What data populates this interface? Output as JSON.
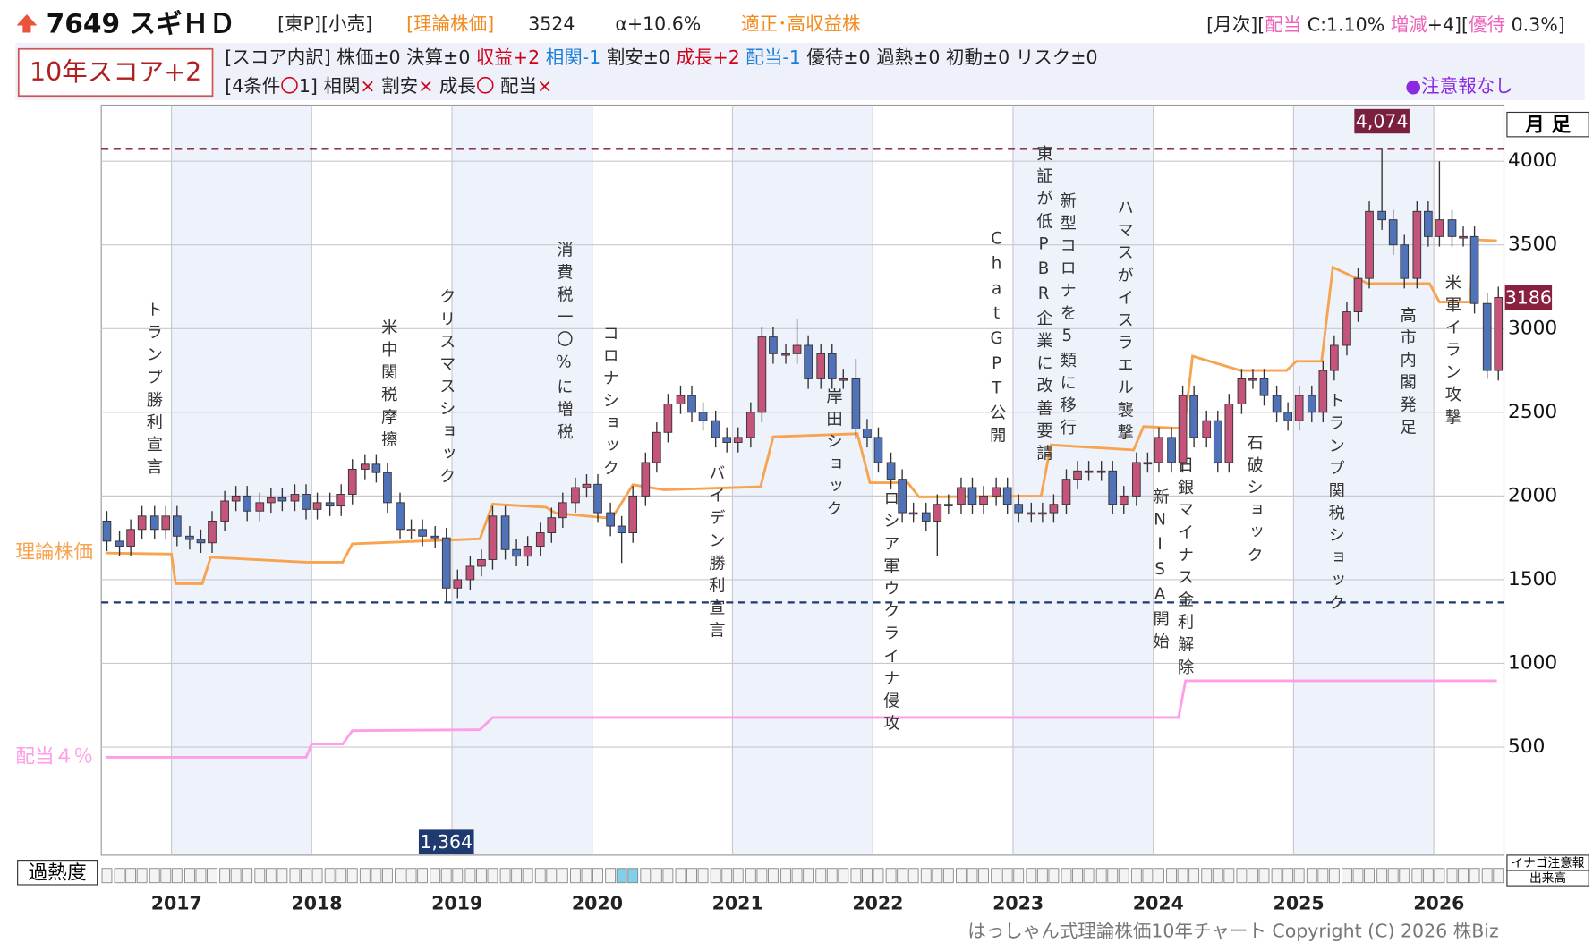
{
  "header": {
    "code_name": "7649 スギＨＤ",
    "market": "[東P][小売]",
    "theory_label": "[理論株価]",
    "theory_value": 3524,
    "alpha": "α+10.6%",
    "rating": "適正･高収益株",
    "monthly": [
      "[月次][",
      "配当",
      " C:1.10% ",
      "増減",
      "+4][",
      "優待",
      " 0.3%]"
    ],
    "score": "10年スコア+2",
    "breakdown": [
      {
        "text": "[スコア内訳] 株価±0 決算±0 ",
        "color": "#222222"
      },
      {
        "text": "収益+2 ",
        "color": "#d0021b"
      },
      {
        "text": "相関-1 ",
        "color": "#1e7fd8"
      },
      {
        "text": "割安±0 ",
        "color": "#222222"
      },
      {
        "text": "成長+2 ",
        "color": "#d0021b"
      },
      {
        "text": "配当-1 ",
        "color": "#1e7fd8"
      },
      {
        "text": "優待±0 過熱±0 初動±0 リスク±0",
        "color": "#222222"
      }
    ],
    "conditions": [
      {
        "text": "[4条件",
        "color": "#222222"
      },
      {
        "text": "〇",
        "color": "#d0021b"
      },
      {
        "text": "1] 相関",
        "color": "#222222"
      },
      {
        "text": "× ",
        "color": "#d0021b"
      },
      {
        "text": "割安",
        "color": "#222222"
      },
      {
        "text": "× ",
        "color": "#d0021b"
      },
      {
        "text": "成長",
        "color": "#222222"
      },
      {
        "text": "〇 ",
        "color": "#d0021b"
      },
      {
        "text": "配当",
        "color": "#222222"
      },
      {
        "text": "×",
        "color": "#d0021b"
      }
    ],
    "alert": "●注意報なし"
  },
  "chart_data": {
    "type": "candlestick",
    "period_label": "月 足",
    "xlim": [
      2016.5,
      2026.5
    ],
    "xticks": [
      2017,
      2018,
      2019,
      2020,
      2021,
      2022,
      2023,
      2024,
      2025,
      2026
    ],
    "ylim": [
      -146,
      4335
    ],
    "yticks": [
      500,
      1000,
      1500,
      2000,
      2500,
      3000,
      3500,
      4000
    ],
    "grid": true,
    "up_color": "#c4547a",
    "down_color": "#4f72b8",
    "x": [
      2016.54,
      2016.63,
      2016.71,
      2016.79,
      2016.88,
      2016.96,
      2017.04,
      2017.13,
      2017.21,
      2017.29,
      2017.38,
      2017.46,
      2017.54,
      2017.63,
      2017.71,
      2017.79,
      2017.88,
      2017.96,
      2018.04,
      2018.13,
      2018.21,
      2018.29,
      2018.38,
      2018.46,
      2018.54,
      2018.63,
      2018.71,
      2018.79,
      2018.88,
      2018.96,
      2019.04,
      2019.13,
      2019.21,
      2019.29,
      2019.38,
      2019.46,
      2019.54,
      2019.63,
      2019.71,
      2019.79,
      2019.88,
      2019.96,
      2020.04,
      2020.13,
      2020.21,
      2020.29,
      2020.38,
      2020.46,
      2020.54,
      2020.63,
      2020.71,
      2020.79,
      2020.88,
      2020.96,
      2021.04,
      2021.13,
      2021.21,
      2021.29,
      2021.38,
      2021.46,
      2021.54,
      2021.63,
      2021.71,
      2021.79,
      2021.88,
      2021.96,
      2022.04,
      2022.13,
      2022.21,
      2022.29,
      2022.38,
      2022.46,
      2022.54,
      2022.63,
      2022.71,
      2022.79,
      2022.88,
      2022.96,
      2023.04,
      2023.13,
      2023.21,
      2023.29,
      2023.38,
      2023.46,
      2023.54,
      2023.63,
      2023.71,
      2023.79,
      2023.88,
      2023.96,
      2024.04,
      2024.13,
      2024.21,
      2024.29,
      2024.38,
      2024.46,
      2024.54,
      2024.63,
      2024.71,
      2024.79,
      2024.88,
      2024.96,
      2025.04,
      2025.13,
      2025.21,
      2025.29,
      2025.38,
      2025.46,
      2025.54,
      2025.63,
      2025.71,
      2025.79,
      2025.88,
      2025.96,
      2026.04,
      2026.13,
      2026.21,
      2026.29,
      2026.38,
      2026.46
    ],
    "open": [
      1850,
      1730,
      1700,
      1800,
      1880,
      1800,
      1880,
      1760,
      1740,
      1720,
      1850,
      1970,
      2000,
      1910,
      1960,
      1990,
      1970,
      2010,
      1920,
      1960,
      1940,
      2010,
      2160,
      2190,
      2140,
      1960,
      1800,
      1800,
      1760,
      1750,
      1450,
      1500,
      1580,
      1620,
      1880,
      1680,
      1640,
      1700,
      1780,
      1870,
      1960,
      2050,
      2070,
      1900,
      1820,
      1780,
      2000,
      2200,
      2380,
      2550,
      2600,
      2500,
      2450,
      2350,
      2320,
      2350,
      2500,
      2950,
      2850,
      2850,
      2900,
      2700,
      2850,
      2700,
      2700,
      2400,
      2350,
      2200,
      2100,
      1900,
      1900,
      1850,
      1950,
      1950,
      2050,
      1950,
      2000,
      2050,
      1950,
      1900,
      1900,
      1900,
      1950,
      2100,
      2150,
      2150,
      2150,
      1950,
      2000,
      2200,
      2200,
      2350,
      2200,
      2600,
      2350,
      2450,
      2200,
      2550,
      2700,
      2700,
      2600,
      2500,
      2450,
      2600,
      2500,
      2750,
      2900,
      3100,
      3300,
      3700,
      3650,
      3500,
      3300,
      3700,
      3550,
      3650,
      3550,
      3550,
      3150,
      2750
    ],
    "high": [
      1910,
      1790,
      1860,
      1940,
      1940,
      1940,
      1940,
      1820,
      1800,
      1910,
      2030,
      2060,
      2060,
      2020,
      2050,
      2050,
      2070,
      2070,
      2020,
      2020,
      2070,
      2220,
      2250,
      2250,
      2200,
      2020,
      1860,
      1860,
      1820,
      1810,
      1560,
      1640,
      1680,
      1940,
      1940,
      1740,
      1760,
      1840,
      1930,
      2020,
      2110,
      2130,
      2130,
      1960,
      1880,
      2060,
      2260,
      2440,
      2610,
      2660,
      2660,
      2560,
      2510,
      2410,
      2410,
      2560,
      3010,
      3010,
      2910,
      3060,
      2960,
      2910,
      2910,
      2760,
      2820,
      2460,
      2410,
      2260,
      2160,
      1960,
      1960,
      2010,
      2010,
      2110,
      2110,
      2060,
      2110,
      2110,
      2010,
      1960,
      1960,
      2010,
      2160,
      2210,
      2210,
      2210,
      2210,
      2060,
      2260,
      2260,
      2410,
      2410,
      2660,
      2660,
      2510,
      2510,
      2610,
      2760,
      2760,
      2760,
      2660,
      2560,
      2660,
      2660,
      2810,
      2960,
      3160,
      3360,
      3760,
      4074,
      3710,
      3560,
      3760,
      3760,
      4000,
      3710,
      3610,
      3610,
      3210,
      3250
    ],
    "low": [
      1670,
      1640,
      1640,
      1740,
      1740,
      1740,
      1700,
      1680,
      1660,
      1660,
      1790,
      1910,
      1850,
      1850,
      1900,
      1910,
      1910,
      1860,
      1860,
      1880,
      1880,
      1950,
      2100,
      2080,
      1900,
      1740,
      1740,
      1700,
      1690,
      1364,
      1390,
      1440,
      1520,
      1560,
      1620,
      1580,
      1580,
      1640,
      1720,
      1810,
      1900,
      1990,
      1840,
      1760,
      1600,
      1720,
      1940,
      2140,
      2320,
      2490,
      2440,
      2390,
      2290,
      2260,
      2260,
      2290,
      2440,
      2790,
      2790,
      2790,
      2640,
      2640,
      2640,
      2640,
      2340,
      2290,
      2140,
      2040,
      1840,
      1840,
      1790,
      1640,
      1890,
      1890,
      1890,
      1890,
      1940,
      1890,
      1840,
      1840,
      1840,
      1840,
      1890,
      2040,
      2090,
      2090,
      1890,
      1890,
      1940,
      2140,
      2140,
      2140,
      2140,
      2290,
      2290,
      2140,
      2140,
      2490,
      2640,
      2540,
      2440,
      2390,
      2390,
      2440,
      2440,
      2690,
      2840,
      3040,
      3240,
      3590,
      3440,
      3240,
      3240,
      3490,
      3490,
      3490,
      3490,
      3090,
      2700,
      2690
    ],
    "close": [
      1730,
      1700,
      1800,
      1880,
      1800,
      1880,
      1760,
      1740,
      1720,
      1850,
      1970,
      2000,
      1910,
      1960,
      1990,
      1970,
      2010,
      1920,
      1960,
      1940,
      2010,
      2160,
      2190,
      2140,
      1960,
      1800,
      1800,
      1760,
      1750,
      1450,
      1500,
      1580,
      1620,
      1880,
      1680,
      1640,
      1700,
      1780,
      1870,
      1960,
      2050,
      2070,
      1900,
      1820,
      1780,
      2000,
      2200,
      2380,
      2550,
      2600,
      2500,
      2450,
      2350,
      2320,
      2350,
      2500,
      2950,
      2850,
      2850,
      2900,
      2700,
      2850,
      2700,
      2700,
      2400,
      2350,
      2200,
      2100,
      1900,
      1900,
      1850,
      1950,
      1950,
      2050,
      1950,
      2000,
      2050,
      1950,
      1900,
      1900,
      1900,
      1950,
      2100,
      2150,
      2150,
      2150,
      1950,
      2000,
      2200,
      2200,
      2350,
      2200,
      2600,
      2350,
      2450,
      2200,
      2550,
      2700,
      2700,
      2600,
      2500,
      2450,
      2600,
      2500,
      2750,
      2900,
      3100,
      3300,
      3700,
      3650,
      3500,
      3300,
      3700,
      3550,
      3650,
      3550,
      3550,
      3150,
      2750,
      3186
    ],
    "theory": {
      "name": "理論株価",
      "color": "#f7a350",
      "x": [
        2016.53,
        2017.0,
        2017.03,
        2017.22,
        2017.28,
        2017.96,
        2018.22,
        2018.29,
        2019.2,
        2019.29,
        2019.67,
        2019.74,
        2020.14,
        2020.29,
        2020.51,
        2021.2,
        2021.29,
        2021.89,
        2021.98,
        2022.25,
        2022.33,
        2023.2,
        2023.27,
        2023.86,
        2023.93,
        2024.22,
        2024.28,
        2024.62,
        2024.95,
        2025.02,
        2025.2,
        2025.28,
        2025.53,
        2025.97,
        2026.04,
        2026.26,
        2026.28,
        2026.45
      ],
      "values": [
        1659,
        1653,
        1476,
        1476,
        1634,
        1604,
        1604,
        1714,
        1744,
        1951,
        1933,
        1897,
        1866,
        2067,
        2037,
        2055,
        2354,
        2372,
        2079,
        2079,
        1994,
        2000,
        2305,
        2275,
        2415,
        2403,
        2836,
        2750,
        2750,
        2805,
        2805,
        3366,
        3269,
        3269,
        3159,
        3159,
        3531,
        3525
      ]
    },
    "dividend": {
      "name": "配当４％",
      "color": "#ff9de6",
      "x": [
        2016.53,
        2017.96,
        2018.0,
        2018.22,
        2018.29,
        2019.2,
        2019.29,
        2024.18,
        2024.23,
        2026.45
      ],
      "values": [
        439,
        439,
        518,
        518,
        598,
        604,
        677,
        677,
        896,
        896
      ]
    },
    "max_line": {
      "value": 4074,
      "label": "4,074"
    },
    "min_line": {
      "value": 1364,
      "label": "1,364"
    },
    "last_label": 3186,
    "annotations": [
      "トランプ勝利宣言",
      "米中関税摩擦",
      "クリスマスショック",
      "消費税一〇%に増税",
      "コロナショック",
      "バイデン勝利宣言",
      "岸田ショック",
      "ロシア軍ウクライナ侵攻",
      "ChatGPT公開",
      "東証が低PBR企業に改善要請",
      "新型コロナを5類に移行",
      "ハマスがイスラエル襲撃",
      "新NISA開始",
      "日銀マイナス金利解除",
      "石破ショック",
      "トランプ関税ショック",
      "高市内閣発足",
      "米軍イラン攻撃"
    ],
    "overheat_label": "過熱度",
    "overheat": [
      0,
      0,
      0,
      0,
      0,
      0,
      0,
      0,
      0,
      0,
      0,
      0,
      0,
      0,
      0,
      0,
      0,
      0,
      0,
      0,
      0,
      0,
      0,
      0,
      0,
      0,
      0,
      0,
      0,
      0,
      0,
      0,
      0,
      0,
      0,
      0,
      0,
      0,
      0,
      0,
      0,
      0,
      0,
      0,
      1,
      1,
      0,
      0,
      0,
      0,
      0,
      0,
      0,
      0,
      0,
      0,
      0,
      0,
      0,
      0,
      0,
      0,
      0,
      0,
      0,
      0,
      0,
      0,
      0,
      0,
      0,
      0,
      0,
      0,
      0,
      0,
      0,
      0,
      0,
      0,
      0,
      0,
      0,
      0,
      0,
      0,
      0,
      0,
      0,
      0,
      0,
      0,
      0,
      0,
      0,
      0,
      0,
      0,
      0,
      0,
      0,
      0,
      0,
      0,
      0,
      0,
      0,
      0,
      0,
      0,
      0,
      0,
      0,
      0,
      0,
      0,
      0,
      0,
      0,
      0
    ],
    "inago_label": "イナゴ注意報",
    "volume_label": "出来高",
    "copyright": "はっしゃん式理論株価10年チャート Copyright (C) 2026 株Biz"
  }
}
